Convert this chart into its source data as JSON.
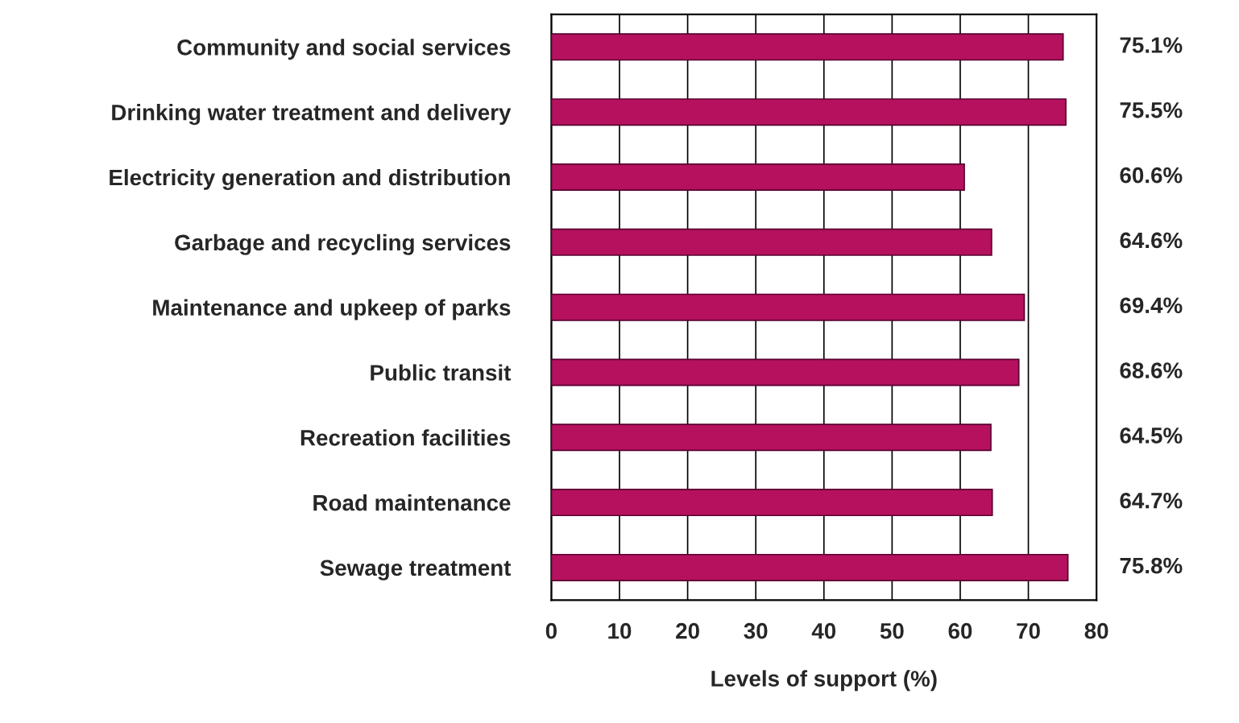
{
  "chart_data": {
    "type": "bar",
    "orientation": "horizontal",
    "xlabel": "Levels of support (%)",
    "categories": [
      "Community and social services",
      "Drinking water treatment and delivery",
      "Electricity generation and distribution",
      "Garbage and recycling services",
      "Maintenance and upkeep of parks",
      "Public transit",
      "Recreation facilities",
      "Road maintenance",
      "Sewage treatment"
    ],
    "values": [
      75.1,
      75.5,
      60.6,
      64.6,
      69.4,
      68.6,
      64.5,
      64.7,
      75.8
    ],
    "value_labels": [
      "75.1%",
      "75.5%",
      "60.6%",
      "64.6%",
      "69.4%",
      "68.6%",
      "64.5%",
      "64.7%",
      "75.8%"
    ],
    "color": "#b5115f",
    "xlim": [
      0,
      80
    ],
    "xticks": [
      0,
      10,
      20,
      30,
      40,
      50,
      60,
      70,
      80
    ],
    "grid": "x"
  }
}
